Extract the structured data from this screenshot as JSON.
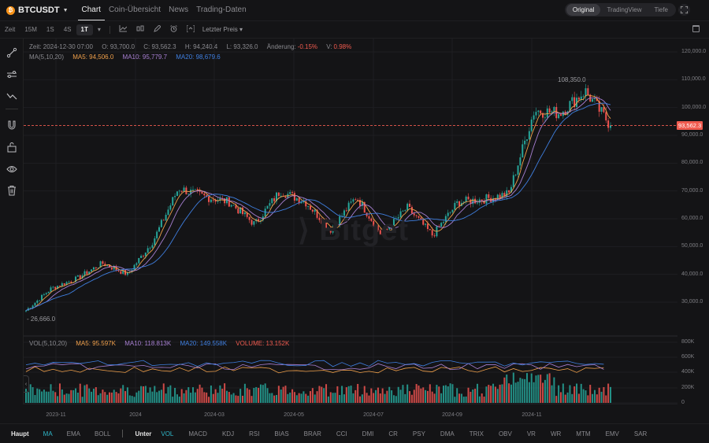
{
  "header": {
    "symbol": "BTCUSDT",
    "coin_glyph": "₿",
    "caret": "▼",
    "tabs": [
      {
        "label": "Chart",
        "active": true
      },
      {
        "label": "Coin-Übersicht",
        "active": false
      },
      {
        "label": "News",
        "active": false
      },
      {
        "label": "Trading-Daten",
        "active": false
      }
    ],
    "view_modes": [
      {
        "label": "Original",
        "active": true
      },
      {
        "label": "TradingView",
        "active": false
      },
      {
        "label": "Tiefe",
        "active": false
      }
    ],
    "fullscreen_icon": "fullscreen-icon"
  },
  "toolbar": {
    "time_label": "Zeit",
    "intervals": [
      {
        "label": "15M",
        "active": false
      },
      {
        "label": "1S",
        "active": false
      },
      {
        "label": "4S",
        "active": false
      },
      {
        "label": "1T",
        "active": true
      }
    ],
    "more_caret": "▾",
    "icons": [
      "indicator-icon",
      "chart-type-icon",
      "draw-icon",
      "alarm-icon",
      "fit-icon"
    ],
    "price_type": "Letzter Preis ▾"
  },
  "sidebar": {
    "icons": [
      "trendline-icon",
      "settings-lines-icon",
      "pattern-icon",
      "magnet-icon",
      "lock-icon",
      "eye-icon",
      "trash-icon"
    ]
  },
  "ohlc_legend": {
    "time": "Zeit: 2024-12-30 07:00",
    "open": "O: 93,700.0",
    "close": "C: 93,562.3",
    "high": "H: 94,240.4",
    "low": "L: 93,326.0",
    "change_label": "Änderung:",
    "change_value": "-0.15%",
    "amp_label": "V:",
    "amp_value": "0.98%"
  },
  "ma_legend": {
    "label": "MA(5,10,20)",
    "ma5": "MA5: 94,506.0",
    "ma10": "MA10: 95,779.7",
    "ma20": "MA20: 98,679.6"
  },
  "vol_legend": {
    "label": "VOL(5,10,20)",
    "ma5": "MA5: 95.597K",
    "ma10": "MA10: 118.813K",
    "ma20": "MA20: 149.558K",
    "volume": "VOLUME: 13.152K"
  },
  "annotations": {
    "high_label": "108,350.0",
    "low_label": "26,666.0",
    "last_price": "93,562.3"
  },
  "watermark": "⟩ Bitget",
  "colors": {
    "up": "#26a69a",
    "down": "#ef5350",
    "ma5": "#f0a04b",
    "ma10": "#a77fd1",
    "ma20": "#3f7fe0",
    "last_price": "#f05b4f",
    "active_indicator": "#2fb7c9"
  },
  "bottombar": {
    "main_label": "Haupt",
    "main_items": [
      {
        "label": "MA",
        "active": true
      },
      {
        "label": "EMA",
        "active": false
      },
      {
        "label": "BOLL",
        "active": false
      }
    ],
    "sub_label": "Unter",
    "sub_items": [
      {
        "label": "VOL",
        "active": true
      },
      {
        "label": "MACD"
      },
      {
        "label": "KDJ"
      },
      {
        "label": "RSI"
      },
      {
        "label": "BIAS"
      },
      {
        "label": "BRAR"
      },
      {
        "label": "CCI"
      },
      {
        "label": "DMI"
      },
      {
        "label": "CR"
      },
      {
        "label": "PSY"
      },
      {
        "label": "DMA"
      },
      {
        "label": "TRIX"
      },
      {
        "label": "OBV"
      },
      {
        "label": "VR"
      },
      {
        "label": "WR"
      },
      {
        "label": "MTM"
      },
      {
        "label": "EMV"
      },
      {
        "label": "SAR"
      }
    ]
  },
  "chart_data": {
    "type": "candlestick",
    "title": "BTCUSDT 1T",
    "y_axis": {
      "ticks": [
        "120,000.0",
        "110,000.0",
        "100,000.0",
        "90,000.0",
        "80,000.0",
        "70,000.0",
        "60,000.0",
        "50,000.0",
        "40,000.0",
        "30,000.0"
      ],
      "range": [
        20000,
        124000
      ]
    },
    "volume_axis": {
      "ticks": [
        "800K",
        "600K",
        "400K",
        "200K",
        "0"
      ],
      "range": [
        0,
        800000
      ]
    },
    "x_axis": {
      "ticks": [
        "2023-11",
        "2024",
        "2024-03",
        "2024-05",
        "2024-07",
        "2024-09",
        "2024-11"
      ]
    },
    "series_keypoints": {
      "dates": [
        "2023-10-15",
        "2023-11-01",
        "2023-12-01",
        "2024-01-01",
        "2024-01-23",
        "2024-02-15",
        "2024-03-14",
        "2024-04-01",
        "2024-04-13",
        "2024-05-01",
        "2024-05-21",
        "2024-06-15",
        "2024-07-05",
        "2024-07-29",
        "2024-08-05",
        "2024-08-25",
        "2024-09-06",
        "2024-09-27",
        "2024-10-15",
        "2024-11-05",
        "2024-11-22",
        "2024-12-05",
        "2024-12-17",
        "2024-12-30"
      ],
      "close": [
        27000,
        35000,
        38500,
        44000,
        40000,
        52000,
        71000,
        68000,
        66000,
        58000,
        70000,
        66000,
        56000,
        68000,
        54000,
        64000,
        54000,
        66000,
        67000,
        69000,
        99000,
        98000,
        106000,
        93562
      ]
    },
    "high": 108350.0,
    "low": 26666.0,
    "last_price": 93562.3,
    "moving_averages": [
      "MA5",
      "MA10",
      "MA20"
    ]
  }
}
